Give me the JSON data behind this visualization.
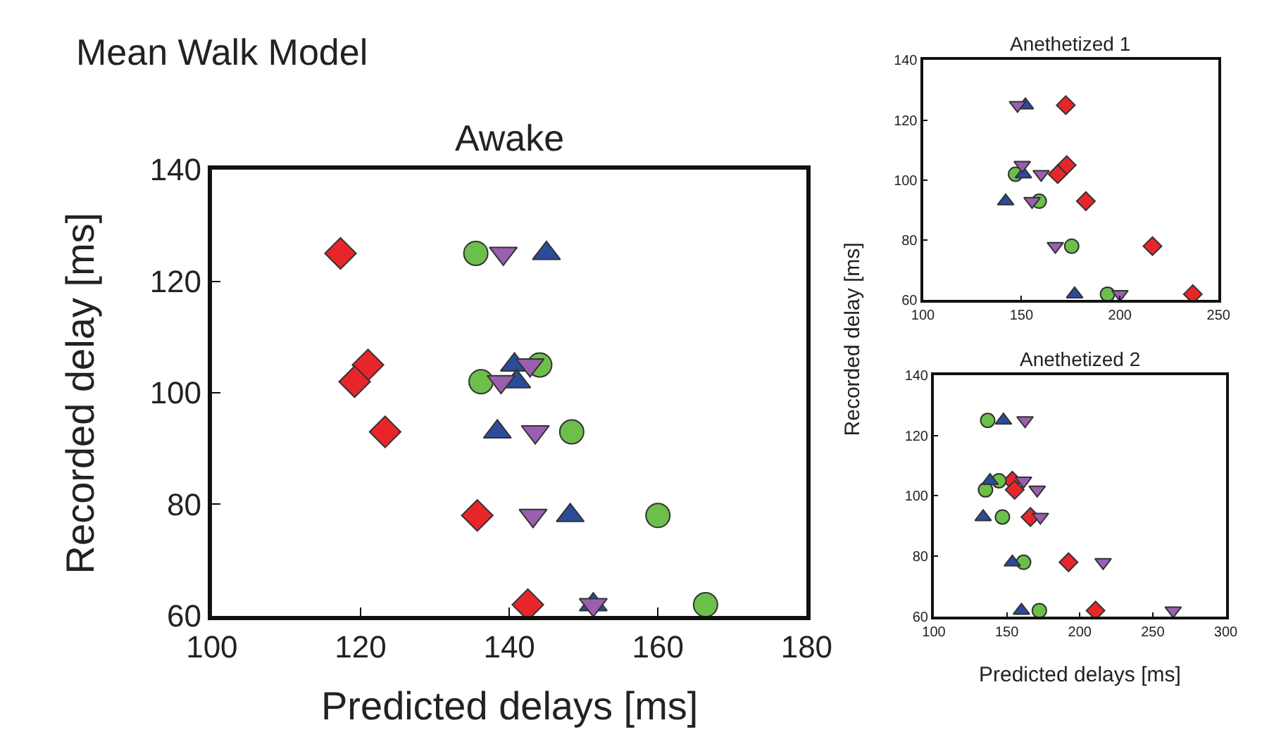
{
  "chart_data": [
    {
      "type": "scatter",
      "title": "Mean Walk Model",
      "subtitle": "Awake",
      "xlabel": "Predicted delays [ms]",
      "ylabel": "Recorded delay [ms]",
      "xlim": [
        100,
        180
      ],
      "xticks": [
        100,
        120,
        140,
        160,
        180
      ],
      "ylim": [
        60,
        140
      ],
      "yticks": [
        60,
        80,
        100,
        120,
        140
      ],
      "series": [
        {
          "color": "#e8262a",
          "marker": "diamond",
          "x": [
            117.3,
            121,
            119.2,
            123.3,
            135.7,
            142.5
          ],
          "values": [
            125,
            105,
            102,
            93,
            78,
            62
          ]
        },
        {
          "color": "#6cc04a",
          "marker": "circle",
          "x": [
            135.5,
            144.1,
            136.2,
            148.4,
            160,
            166.4
          ],
          "values": [
            125,
            105,
            102,
            93,
            78,
            62
          ]
        },
        {
          "color": "#2b4c9b",
          "marker": "triangle",
          "x": [
            145,
            140.7,
            141,
            138.4,
            148.2,
            151.3
          ],
          "values": [
            125,
            105,
            102,
            93,
            78,
            62
          ]
        },
        {
          "color": "#9a5fb0",
          "marker": "triangle-down",
          "x": [
            139.2,
            142.8,
            138.9,
            143.5,
            143.2,
            151.3
          ],
          "values": [
            125,
            105,
            102,
            93,
            78,
            62
          ]
        }
      ]
    },
    {
      "type": "scatter",
      "title": "Anethetized 1",
      "ylabel": "Recorded delay [ms]",
      "xlim": [
        100,
        250
      ],
      "xticks": [
        100,
        150,
        200,
        250
      ],
      "ylim": [
        60,
        140
      ],
      "yticks": [
        60,
        80,
        100,
        120,
        140
      ],
      "series": [
        {
          "color": "#e8262a",
          "marker": "diamond",
          "x": [
            172.5,
            173,
            168.4,
            182.7,
            216.5,
            237
          ],
          "values": [
            125,
            105,
            102,
            93,
            78,
            62
          ]
        },
        {
          "color": "#6cc04a",
          "marker": "circle",
          "x": [
            147,
            159,
            175.5,
            193.7
          ],
          "values": [
            102,
            93,
            78,
            62
          ]
        },
        {
          "color": "#2b4c9b",
          "marker": "triangle",
          "x": [
            152,
            151,
            142,
            177
          ],
          "values": [
            125,
            102,
            93,
            62
          ]
        },
        {
          "color": "#9a5fb0",
          "marker": "triangle-down",
          "x": [
            148,
            150.4,
            160,
            155.4,
            167.2,
            200
          ],
          "values": [
            125,
            105,
            102,
            93,
            78,
            62
          ]
        }
      ]
    },
    {
      "type": "scatter",
      "title": "Anethetized 2",
      "xlabel": "Predicted delays [ms]",
      "xlim": [
        100,
        300
      ],
      "xticks": [
        100,
        150,
        200,
        250,
        300
      ],
      "ylim": [
        60,
        140
      ],
      "yticks": [
        60,
        80,
        100,
        120,
        140
      ],
      "series": [
        {
          "color": "#e8262a",
          "marker": "diamond",
          "x": [
            153.8,
            155.4,
            166.2,
            192.3,
            210.8
          ],
          "values": [
            105,
            102,
            93,
            78,
            62
          ]
        },
        {
          "color": "#6cc04a",
          "marker": "circle",
          "x": [
            136.9,
            144.6,
            135.4,
            147,
            161.5,
            172.3
          ],
          "values": [
            125,
            105,
            102,
            93,
            78,
            62
          ]
        },
        {
          "color": "#2b4c9b",
          "marker": "triangle",
          "x": [
            147.7,
            138.5,
            133.8,
            153.8,
            160
          ],
          "values": [
            125,
            105,
            93,
            78,
            62
          ]
        },
        {
          "color": "#9a5fb0",
          "marker": "triangle-down",
          "x": [
            162.5,
            161.5,
            170.8,
            173,
            216,
            264
          ],
          "values": [
            125,
            105,
            102,
            93,
            78,
            62
          ]
        }
      ]
    }
  ]
}
